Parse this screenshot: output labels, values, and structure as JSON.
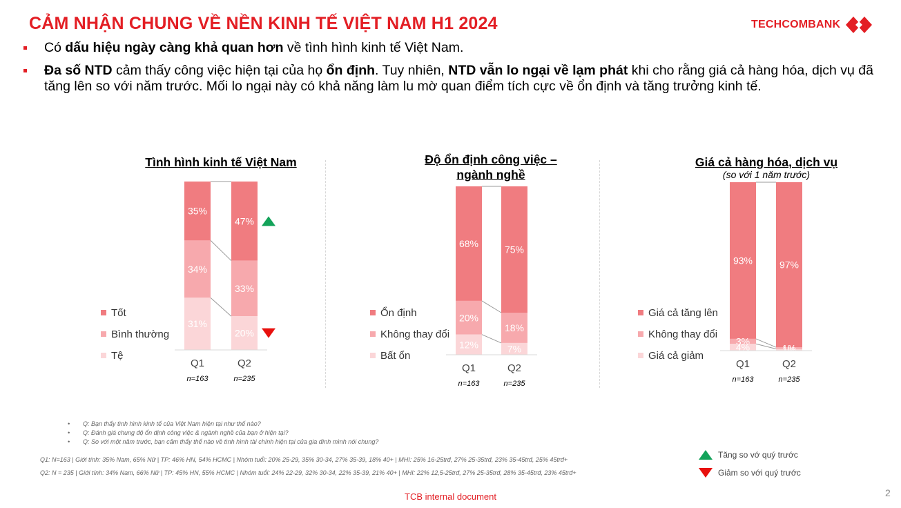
{
  "header": {
    "title": "CẢM NHẬN CHUNG VỀ NỀN KINH TẾ VIỆT NAM H1 2024",
    "logo_text": "TECHCOMBANK"
  },
  "bullets": [
    {
      "parts": [
        {
          "t": "Có ",
          "b": false
        },
        {
          "t": "dấu hiệu ngày càng khả quan hơn",
          "b": true
        },
        {
          "t": " về tình hình kinh tế Việt Nam.",
          "b": false
        }
      ]
    },
    {
      "parts": [
        {
          "t": "Đa số NTD",
          "b": true
        },
        {
          "t": " cảm thấy công việc hiện tại của họ ",
          "b": false
        },
        {
          "t": "ổn định",
          "b": true
        },
        {
          "t": ". Tuy nhiên, ",
          "b": false
        },
        {
          "t": "NTD vẫn lo ngại về lạm phát",
          "b": true
        },
        {
          "t": " khi cho rằng giá cả hàng hóa, dịch vụ đã tăng lên so với năm trước. Mối lo ngại này có khả năng làm lu mờ quan điểm tích cực về ổn định và tăng trưởng kinh tế.",
          "b": false
        }
      ]
    }
  ],
  "colors": {
    "brand": "#e31e24",
    "top": "#f07c80",
    "mid": "#f7a9ad",
    "low": "#fbd6d8",
    "up": "#13a35a",
    "down": "#e8100e"
  },
  "chart_data": [
    {
      "type": "bar",
      "stacked": true,
      "title": "Tình hình kinh tế Việt Nam",
      "categories": [
        "Q1",
        "Q2"
      ],
      "sample_sizes": [
        "n=163",
        "n=235"
      ],
      "series": [
        {
          "name": "Tốt",
          "values": [
            35,
            47
          ]
        },
        {
          "name": "Bình thường",
          "values": [
            34,
            33
          ]
        },
        {
          "name": "Tệ",
          "values": [
            31,
            20
          ]
        }
      ],
      "markers": {
        "Tốt": "up",
        "Tệ": "down"
      }
    },
    {
      "type": "bar",
      "stacked": true,
      "title": "Độ ổn định công việc – ngành nghề",
      "categories": [
        "Q1",
        "Q2"
      ],
      "sample_sizes": [
        "n=163",
        "n=235"
      ],
      "series": [
        {
          "name": "Ổn định",
          "values": [
            68,
            75
          ]
        },
        {
          "name": "Không thay đổi",
          "values": [
            20,
            18
          ]
        },
        {
          "name": "Bất ổn",
          "values": [
            12,
            7
          ]
        }
      ]
    },
    {
      "type": "bar",
      "stacked": true,
      "title": "Giá cả hàng hóa, dịch vụ",
      "subtitle": "(so với 1 năm trước)",
      "categories": [
        "Q1",
        "Q2"
      ],
      "sample_sizes": [
        "n=163",
        "n=235"
      ],
      "series": [
        {
          "name": "Giá cả tăng lên",
          "values": [
            93,
            97
          ]
        },
        {
          "name": "Không thay đổi",
          "values": [
            3,
            1
          ]
        },
        {
          "name": "Giá cả giảm",
          "values": [
            4,
            1
          ]
        }
      ]
    }
  ],
  "notes": [
    "Q: Bạn thấy tình hình kinh tế của Việt Nam hiện tại như thế nào?",
    "Q: Đánh giá chung độ ổn định công việc & ngành nghề của bạn ở hiện tại?",
    "Q: So với một năm trước, bạn cảm thấy thế nào về tình hình tài chính hiện tại của gia đình mình nói chung?"
  ],
  "meta": [
    "Q1: N=163 | Giới tính: 35% Nam, 65% Nữ | TP: 46% HN, 54% HCMC | Nhóm tuổi: 20% 25-29, 35% 30-34, 27% 35-39, 18% 40+ | MHI: 25% 16-25trđ, 27% 25-35trđ, 23% 35-45trđ, 25% 45trđ+",
    "Q2: N = 235 | Giới tính: 34% Nam, 66% Nữ | TP: 45% HN, 55% HCMC | Nhóm tuổi: 24% 22-29, 32% 30-34, 22% 35-39, 21% 40+ | MHI: 22% 12,5-25trđ, 27% 25-35trđ, 28% 35-45trđ, 23% 45trđ+"
  ],
  "key": {
    "up_label": "Tăng so vớ quý trước",
    "down_label": "Giảm so với quý trước"
  },
  "footer": {
    "text": "TCB internal document",
    "page": "2"
  }
}
